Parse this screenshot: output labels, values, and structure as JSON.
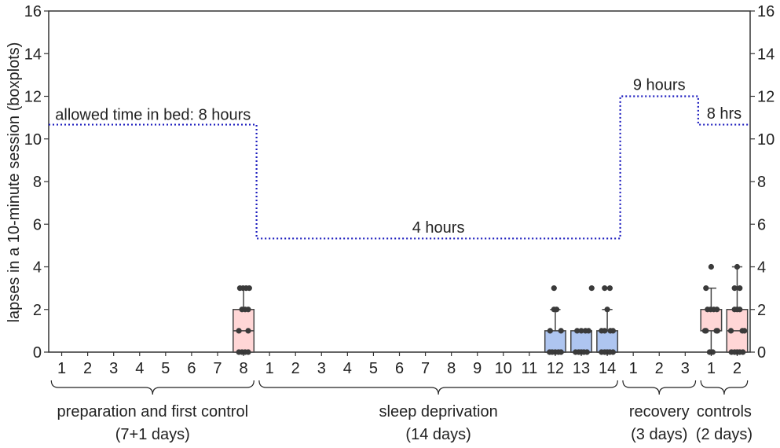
{
  "chart_data": {
    "type": "boxplot",
    "ylabel": "lapses in a 10-minute session (boxplots)",
    "ylim": [
      0,
      16
    ],
    "yticks": [
      0,
      2,
      4,
      6,
      8,
      10,
      12,
      14,
      16
    ],
    "right_axis_ticks": true,
    "grid": false,
    "x_tick_labels": [
      "1",
      "2",
      "3",
      "4",
      "5",
      "6",
      "7",
      "8",
      "1",
      "2",
      "3",
      "4",
      "5",
      "6",
      "7",
      "8",
      "9",
      "10",
      "11",
      "12",
      "13",
      "14",
      "1",
      "2",
      "3",
      "1",
      "2"
    ],
    "groups": [
      {
        "line1": "preparation and first control",
        "line2": "(7+1 days)",
        "first": 0,
        "last": 7
      },
      {
        "line1": "sleep deprivation",
        "line2": "(14 days)",
        "first": 8,
        "last": 21
      },
      {
        "line1": "recovery",
        "line2": "(3 days)",
        "first": 22,
        "last": 24
      },
      {
        "line1": "controls",
        "line2": "(2 days)",
        "first": 25,
        "last": 26
      }
    ],
    "time_in_bed": {
      "series_color": "#1f1fbf",
      "segments": [
        {
          "from": -0.5,
          "to": 7.5,
          "value": 10.67
        },
        {
          "from": 7.5,
          "to": 21.5,
          "value": 5.33
        },
        {
          "from": 21.5,
          "to": 24.5,
          "value": 12
        },
        {
          "from": 24.5,
          "to": 26.5,
          "value": 10.67
        }
      ]
    },
    "annotations": [
      {
        "text": "allowed time in bed: 8 hours",
        "x": -0.25,
        "y": 10.9,
        "anchor": "start"
      },
      {
        "text": "4 hours",
        "x": 14.5,
        "y": 5.6,
        "anchor": "middle"
      },
      {
        "text": "9 hours",
        "x": 23.0,
        "y": 12.3,
        "anchor": "middle"
      },
      {
        "text": "8 hrs",
        "x": 25.5,
        "y": 10.95,
        "anchor": "middle"
      }
    ],
    "colors": {
      "pink": "#ffd6d6",
      "blue": "#aec5f0",
      "point": "#3a3a3a",
      "line": "#444444"
    },
    "boxes": [
      {
        "index": 7,
        "color": "pink",
        "q1": 0,
        "median": 1,
        "q3": 2,
        "whisker_low": 0,
        "whisker_high": 3,
        "points": [
          [
            -0.18,
            0
          ],
          [
            -0.06,
            0
          ],
          [
            0.06,
            0
          ],
          [
            0.18,
            0
          ],
          [
            -0.18,
            1
          ],
          [
            0.18,
            1
          ],
          [
            -0.06,
            2
          ],
          [
            0.06,
            2
          ],
          [
            0.18,
            2
          ],
          [
            -0.14,
            3
          ],
          [
            -0.02,
            3
          ],
          [
            0.1,
            3
          ],
          [
            0.22,
            3
          ]
        ]
      },
      {
        "index": 19,
        "color": "blue",
        "q1": 0,
        "median": 0,
        "q3": 1,
        "whisker_low": 0,
        "whisker_high": 2,
        "points": [
          [
            -0.22,
            0
          ],
          [
            -0.12,
            0
          ],
          [
            0.0,
            0
          ],
          [
            0.12,
            0
          ],
          [
            0.22,
            0
          ],
          [
            -0.2,
            1
          ],
          [
            0.22,
            1
          ],
          [
            -0.05,
            2
          ],
          [
            0.05,
            2
          ],
          [
            -0.05,
            3
          ]
        ]
      },
      {
        "index": 20,
        "color": "blue",
        "q1": 0,
        "median": 0,
        "q3": 1,
        "whisker_low": 0,
        "whisker_high": 1,
        "points": [
          [
            -0.22,
            0
          ],
          [
            -0.1,
            0
          ],
          [
            0.0,
            0
          ],
          [
            0.1,
            0
          ],
          [
            0.22,
            0
          ],
          [
            -0.16,
            1
          ],
          [
            0.0,
            1
          ],
          [
            0.16,
            1
          ],
          [
            0.28,
            1
          ],
          [
            0.4,
            3
          ]
        ]
      },
      {
        "index": 21,
        "color": "blue",
        "q1": 0,
        "median": 0,
        "q3": 1,
        "whisker_low": 0,
        "whisker_high": 2,
        "points": [
          [
            -0.22,
            0
          ],
          [
            -0.1,
            0
          ],
          [
            0.0,
            0
          ],
          [
            0.1,
            0
          ],
          [
            0.22,
            0
          ],
          [
            -0.22,
            1
          ],
          [
            -0.1,
            1
          ],
          [
            0.12,
            1
          ],
          [
            0.22,
            1
          ],
          [
            0.0,
            2
          ],
          [
            -0.1,
            3
          ],
          [
            0.1,
            3
          ]
        ]
      },
      {
        "index": 25,
        "color": "pink",
        "q1": 1,
        "median": 2,
        "q3": 2,
        "whisker_low": 0,
        "whisker_high": 3,
        "points": [
          [
            -0.06,
            0
          ],
          [
            0.06,
            0
          ],
          [
            -0.24,
            1
          ],
          [
            -0.2,
            1
          ],
          [
            0.2,
            1
          ],
          [
            0.24,
            1
          ],
          [
            -0.14,
            2
          ],
          [
            -0.02,
            2
          ],
          [
            0.1,
            2
          ],
          [
            0.22,
            2
          ],
          [
            -0.2,
            3
          ],
          [
            0.0,
            4
          ]
        ]
      },
      {
        "index": 26,
        "color": "pink",
        "q1": 0,
        "median": 1,
        "q3": 2,
        "whisker_low": 0,
        "whisker_high": 4,
        "points": [
          [
            -0.22,
            0
          ],
          [
            -0.1,
            0
          ],
          [
            0.0,
            0
          ],
          [
            0.1,
            0
          ],
          [
            0.22,
            0
          ],
          [
            -0.24,
            1
          ],
          [
            0.2,
            1
          ],
          [
            0.28,
            1
          ],
          [
            -0.1,
            2
          ],
          [
            0.0,
            2
          ],
          [
            0.1,
            2
          ],
          [
            -0.1,
            3
          ],
          [
            0.1,
            3
          ],
          [
            0.0,
            4
          ]
        ]
      }
    ]
  }
}
